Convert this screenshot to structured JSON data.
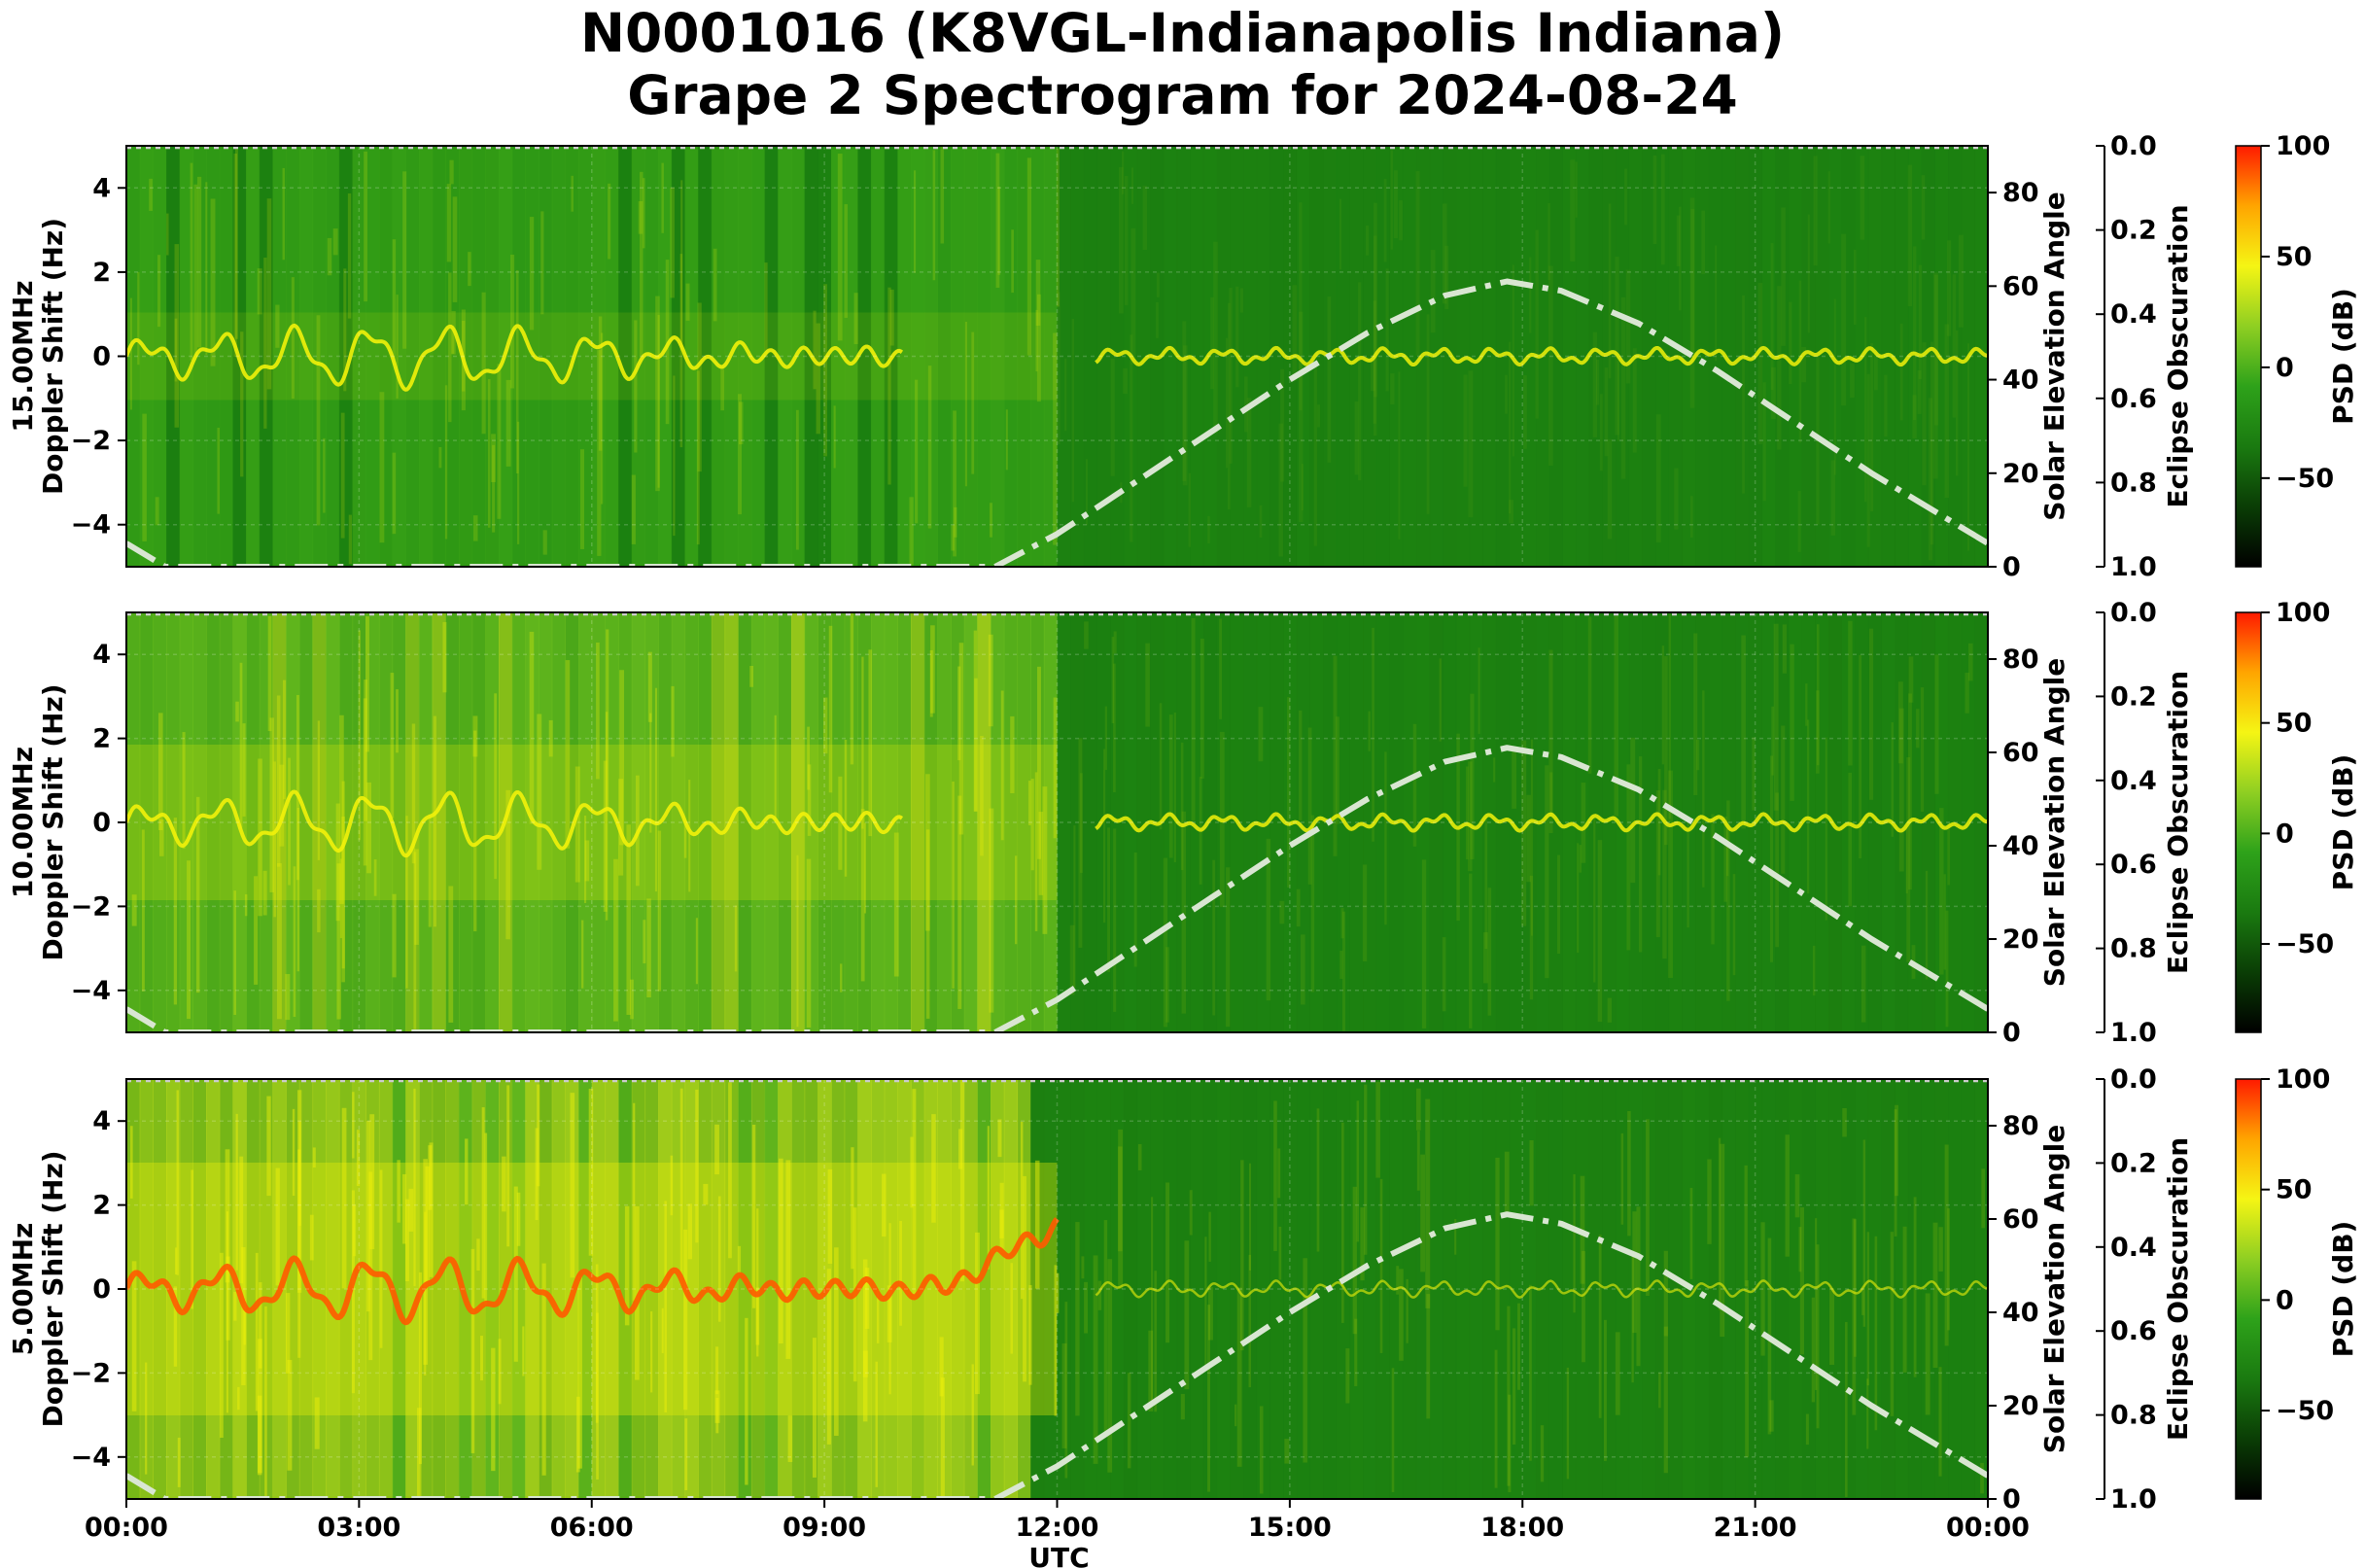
{
  "title": {
    "line1": "N0001016 (K8VGL-Indianapolis Indiana)",
    "line2": "Grape 2 Spectrogram for 2024-08-24"
  },
  "colors": {
    "background_green": "#1f8a12",
    "signal_yellow": "#f2f20a",
    "signal_red": "#ff2200",
    "solar_curve": "#d9e6d2",
    "colormap": [
      "#000000",
      "#0a3d05",
      "#1a7a10",
      "#2ea21a",
      "#8fcf22",
      "#f5f514",
      "#ffa500",
      "#ff1a00"
    ]
  },
  "chart_data": [
    {
      "type": "heatmap",
      "panel": "15.00MHz",
      "ylabel_line1": "15.00MHz",
      "ylabel_line2": "Doppler Shift (Hz)",
      "ylim": [
        -5,
        5
      ],
      "yticks": [
        "4",
        "2",
        "0",
        "−2",
        "−4"
      ],
      "right_axis_label": "Solar Elevation Angle",
      "right_ylim": [
        0,
        90
      ],
      "right_ticks": [
        "0",
        "20",
        "40",
        "60",
        "80"
      ],
      "eclipse_label": "Eclipse Obscuration",
      "eclipse_ticks": [
        "0.0",
        "0.2",
        "0.4",
        "0.6",
        "0.8",
        "1.0"
      ],
      "colorbar_label": "PSD (dB)",
      "colorbar_ticks": [
        "100",
        "50",
        "0",
        "−50"
      ],
      "colorbar_range": [
        -90,
        100
      ],
      "solar_elevation_peak": {
        "time_utc": "17:50",
        "angle": 61
      },
      "signal_intensity": "low",
      "description_values": {
        "carrier_doppler_hz": 0
      }
    },
    {
      "type": "heatmap",
      "panel": "10.00MHz",
      "ylabel_line1": "10.00MHz",
      "ylabel_line2": "Doppler Shift (Hz)",
      "ylim": [
        -5,
        5
      ],
      "yticks": [
        "4",
        "2",
        "0",
        "−2",
        "−4"
      ],
      "right_axis_label": "Solar Elevation Angle",
      "right_ylim": [
        0,
        90
      ],
      "right_ticks": [
        "0",
        "20",
        "40",
        "60",
        "80"
      ],
      "eclipse_label": "Eclipse Obscuration",
      "eclipse_ticks": [
        "0.0",
        "0.2",
        "0.4",
        "0.6",
        "0.8",
        "1.0"
      ],
      "colorbar_label": "PSD (dB)",
      "colorbar_ticks": [
        "100",
        "50",
        "0",
        "−50"
      ],
      "colorbar_range": [
        -90,
        100
      ],
      "solar_elevation_peak": {
        "time_utc": "17:50",
        "angle": 61
      },
      "signal_intensity": "medium",
      "description_values": {
        "carrier_doppler_hz": 0
      }
    },
    {
      "type": "heatmap",
      "panel": "5.00MHz",
      "ylabel_line1": "5.00MHz",
      "ylabel_line2": "Doppler Shift (Hz)",
      "ylim": [
        -5,
        5
      ],
      "yticks": [
        "4",
        "2",
        "0",
        "−2",
        "−4"
      ],
      "right_axis_label": "Solar Elevation Angle",
      "right_ylim": [
        0,
        90
      ],
      "right_ticks": [
        "0",
        "20",
        "40",
        "60",
        "80"
      ],
      "eclipse_label": "Eclipse Obscuration",
      "eclipse_ticks": [
        "0.0",
        "0.2",
        "0.4",
        "0.6",
        "0.8",
        "1.0"
      ],
      "colorbar_label": "PSD (dB)",
      "colorbar_ticks": [
        "100",
        "50",
        "0",
        "−50"
      ],
      "colorbar_range": [
        -90,
        100
      ],
      "solar_elevation_peak": {
        "time_utc": "17:50",
        "angle": 61
      },
      "signal_intensity": "high",
      "description_values": {
        "carrier_doppler_hz": 0
      }
    }
  ],
  "x_axis": {
    "label": "UTC",
    "ticks": [
      "00:00",
      "03:00",
      "06:00",
      "09:00",
      "12:00",
      "15:00",
      "18:00",
      "21:00",
      "00:00"
    ],
    "range_hours": [
      0,
      24
    ]
  },
  "solar_elevation_series": {
    "time_hours": [
      0,
      0.5,
      11.2,
      12,
      13,
      14,
      15,
      16,
      17,
      17.8,
      18.5,
      19.5,
      20.5,
      21.5,
      22.5,
      23.5,
      24
    ],
    "angle_deg": [
      5,
      0,
      0,
      7,
      18,
      29,
      40,
      50,
      58,
      61,
      59,
      52,
      42,
      31,
      20,
      10,
      5
    ]
  }
}
